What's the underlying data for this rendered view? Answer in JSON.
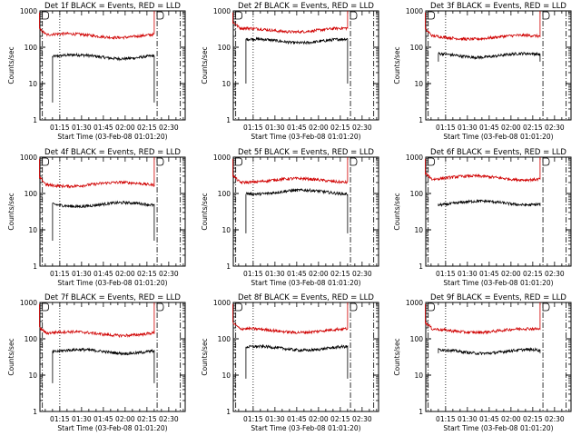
{
  "chart_data": [
    {
      "type": "line",
      "title": "Det 1f BLACK = Events, RED = LLD",
      "xlabel": "Start Time (03-Feb-08 01:01:20)",
      "ylabel": "Counts/sec",
      "ylog": true,
      "ylim": [
        1,
        1000
      ],
      "xlim": [
        "01:01:20",
        "02:41:20"
      ],
      "x_ticks": [
        "01:15",
        "01:30",
        "01:45",
        "02:00",
        "02:15",
        "02:30"
      ],
      "y_ticks": [
        "1",
        "10",
        "100",
        "1000"
      ],
      "series": [
        {
          "color": "#000000",
          "start": "01:10",
          "end": "02:20",
          "level": 55,
          "drop": 3
        },
        {
          "color": "#d00000",
          "start": "01:01",
          "end": "02:20",
          "level": 210,
          "edge": 1000
        }
      ],
      "markers": {
        "dotted": [
          "01:15"
        ],
        "dashdot": [
          "01:03",
          "02:22",
          "02:38"
        ]
      }
    },
    {
      "type": "line",
      "title": "Det 2f BLACK = Events, RED = LLD",
      "xlabel": "Start Time (03-Feb-08 01:01:20)",
      "ylabel": "Counts/sec",
      "ylog": true,
      "ylim": [
        1,
        1000
      ],
      "xlim": [
        "01:01:20",
        "02:41:20"
      ],
      "x_ticks": [
        "01:15",
        "01:30",
        "01:45",
        "02:00",
        "02:15",
        "02:30"
      ],
      "y_ticks": [
        "1",
        "10",
        "100",
        "1000"
      ],
      "series": [
        {
          "color": "#000000",
          "start": "01:10",
          "end": "02:20",
          "level": 150,
          "drop": 10
        },
        {
          "color": "#d00000",
          "start": "01:01",
          "end": "02:20",
          "level": 300,
          "edge": 1000
        }
      ],
      "markers": {
        "dotted": [
          "01:15"
        ],
        "dashdot": [
          "01:03",
          "02:22",
          "02:38"
        ]
      }
    },
    {
      "type": "line",
      "title": "Det 3f BLACK = Events, RED = LLD",
      "xlabel": "Start Time (03-Feb-08 01:01:20)",
      "ylabel": "Counts/sec",
      "ylog": true,
      "ylim": [
        1,
        1000
      ],
      "xlim": [
        "01:01:20",
        "02:41:20"
      ],
      "x_ticks": [
        "01:15",
        "01:30",
        "01:45",
        "02:00",
        "02:15",
        "02:30"
      ],
      "y_ticks": [
        "1",
        "10",
        "100",
        "1000"
      ],
      "series": [
        {
          "color": "#000000",
          "start": "01:10",
          "end": "02:20",
          "level": 60,
          "drop": 40
        },
        {
          "color": "#d00000",
          "start": "01:01",
          "end": "02:20",
          "level": 190,
          "edge": 1000
        }
      ],
      "markers": {
        "dotted": [
          "01:15"
        ],
        "dashdot": [
          "01:03",
          "02:22",
          "02:38"
        ]
      }
    },
    {
      "type": "line",
      "title": "Det 4f BLACK = Events, RED = LLD",
      "xlabel": "Start Time (03-Feb-08 01:01:20)",
      "ylabel": "Counts/sec",
      "ylog": true,
      "ylim": [
        1,
        1000
      ],
      "xlim": [
        "01:01:20",
        "02:41:20"
      ],
      "x_ticks": [
        "01:15",
        "01:30",
        "01:45",
        "02:00",
        "02:15",
        "02:30"
      ],
      "y_ticks": [
        "1",
        "10",
        "100",
        "1000"
      ],
      "series": [
        {
          "color": "#000000",
          "start": "01:10",
          "end": "02:20",
          "level": 50,
          "drop": 5
        },
        {
          "color": "#d00000",
          "start": "01:01",
          "end": "02:20",
          "level": 180,
          "edge": 1000
        }
      ],
      "markers": {
        "dotted": [
          "01:15"
        ],
        "dashdot": [
          "01:03",
          "02:22",
          "02:38"
        ]
      }
    },
    {
      "type": "line",
      "title": "Det 5f BLACK = Events, RED = LLD",
      "xlabel": "Start Time (03-Feb-08 01:01:20)",
      "ylabel": "Counts/sec",
      "ylog": true,
      "ylim": [
        1,
        1000
      ],
      "xlim": [
        "01:01:20",
        "02:41:20"
      ],
      "x_ticks": [
        "01:15",
        "01:30",
        "01:45",
        "02:00",
        "02:15",
        "02:30"
      ],
      "y_ticks": [
        "1",
        "10",
        "100",
        "1000"
      ],
      "series": [
        {
          "color": "#000000",
          "start": "01:10",
          "end": "02:20",
          "level": 110,
          "drop": 8
        },
        {
          "color": "#d00000",
          "start": "01:01",
          "end": "02:20",
          "level": 230,
          "edge": 1000
        }
      ],
      "markers": {
        "dotted": [
          "01:15"
        ],
        "dashdot": [
          "01:03",
          "02:22",
          "02:38"
        ]
      }
    },
    {
      "type": "line",
      "title": "Det 6f BLACK = Events, RED = LLD",
      "xlabel": "Start Time (03-Feb-08 01:01:20)",
      "ylabel": "Counts/sec",
      "ylog": true,
      "ylim": [
        1,
        1000
      ],
      "xlim": [
        "01:01:20",
        "02:41:20"
      ],
      "x_ticks": [
        "01:15",
        "01:30",
        "01:45",
        "02:00",
        "02:15",
        "02:30"
      ],
      "y_ticks": [
        "1",
        "10",
        "100",
        "1000"
      ],
      "series": [
        {
          "color": "#000000",
          "start": "01:10",
          "end": "02:20",
          "level": 55,
          "drop": 45
        },
        {
          "color": "#d00000",
          "start": "01:01",
          "end": "02:20",
          "level": 270,
          "edge": 1000
        }
      ],
      "markers": {
        "dotted": [
          "01:15"
        ],
        "dashdot": [
          "01:03",
          "02:22",
          "02:38"
        ]
      }
    },
    {
      "type": "line",
      "title": "Det 7f BLACK = Events, RED = LLD",
      "xlabel": "Start Time (03-Feb-08 01:01:20)",
      "ylabel": "Counts/sec",
      "ylog": true,
      "ylim": [
        1,
        1000
      ],
      "xlim": [
        "01:01:20",
        "02:41:20"
      ],
      "x_ticks": [
        "01:15",
        "01:30",
        "01:45",
        "02:00",
        "02:15",
        "02:30"
      ],
      "y_ticks": [
        "1",
        "10",
        "100",
        "1000"
      ],
      "series": [
        {
          "color": "#000000",
          "start": "01:10",
          "end": "02:20",
          "level": 45,
          "drop": 6
        },
        {
          "color": "#d00000",
          "start": "01:01",
          "end": "02:20",
          "level": 140,
          "edge": 1000
        }
      ],
      "markers": {
        "dotted": [
          "01:15"
        ],
        "dashdot": [
          "01:03",
          "02:22",
          "02:38"
        ]
      }
    },
    {
      "type": "line",
      "title": "Det 8f BLACK = Events, RED = LLD",
      "xlabel": "Start Time (03-Feb-08 01:01:20)",
      "ylabel": "Counts/sec",
      "ylog": true,
      "ylim": [
        1,
        1000
      ],
      "xlim": [
        "01:01:20",
        "02:41:20"
      ],
      "x_ticks": [
        "01:15",
        "01:30",
        "01:45",
        "02:00",
        "02:15",
        "02:30"
      ],
      "y_ticks": [
        "1",
        "10",
        "100",
        "1000"
      ],
      "series": [
        {
          "color": "#000000",
          "start": "01:10",
          "end": "02:20",
          "level": 55,
          "drop": 8
        },
        {
          "color": "#d00000",
          "start": "01:01",
          "end": "02:20",
          "level": 170,
          "edge": 1000
        }
      ],
      "markers": {
        "dotted": [
          "01:15"
        ],
        "dashdot": [
          "01:03",
          "02:22",
          "02:38"
        ]
      }
    },
    {
      "type": "line",
      "title": "Det 9f BLACK = Events, RED = LLD",
      "xlabel": "Start Time (03-Feb-08 01:01:20)",
      "ylabel": "Counts/sec",
      "ylog": true,
      "ylim": [
        1,
        1000
      ],
      "xlim": [
        "01:01:20",
        "02:41:20"
      ],
      "x_ticks": [
        "01:15",
        "01:30",
        "01:45",
        "02:00",
        "02:15",
        "02:30"
      ],
      "y_ticks": [
        "1",
        "10",
        "100",
        "1000"
      ],
      "series": [
        {
          "color": "#000000",
          "start": "01:10",
          "end": "02:20",
          "level": 45,
          "drop": 40
        },
        {
          "color": "#d00000",
          "start": "01:01",
          "end": "02:20",
          "level": 170,
          "edge": 1000
        }
      ],
      "markers": {
        "dotted": [
          "01:15"
        ],
        "dashdot": [
          "01:03",
          "02:22",
          "02:38"
        ]
      }
    }
  ]
}
